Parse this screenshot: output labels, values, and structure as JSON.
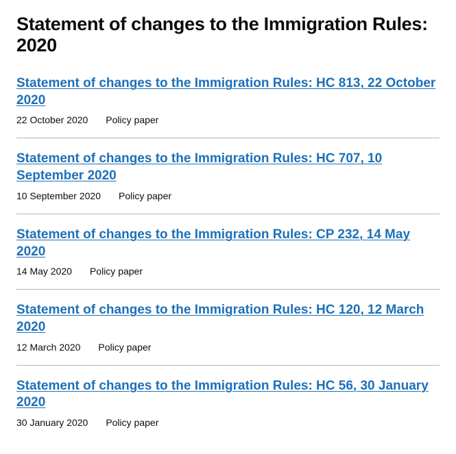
{
  "title": "Statement of changes to the Immigration Rules: 2020",
  "link_color": "#1d70b8",
  "text_color": "#0b0c0c",
  "border_color": "#b1b4b6",
  "background_color": "#ffffff",
  "items": [
    {
      "title": "Statement of changes to the Immigration Rules: HC 813, 22 October 2020",
      "date": "22 October 2020",
      "type": "Policy paper"
    },
    {
      "title": "Statement of changes to the Immigration Rules: HC 707, 10 September 2020",
      "date": "10 September 2020",
      "type": "Policy paper"
    },
    {
      "title": "Statement of changes to the Immigration Rules: CP 232, 14 May 2020",
      "date": "14 May 2020",
      "type": "Policy paper"
    },
    {
      "title": "Statement of changes to the Immigration Rules: HC 120, 12 March 2020",
      "date": "12 March 2020",
      "type": "Policy paper"
    },
    {
      "title": "Statement of changes to the Immigration Rules: HC 56, 30 January 2020",
      "date": "30 January 2020",
      "type": "Policy paper"
    }
  ]
}
